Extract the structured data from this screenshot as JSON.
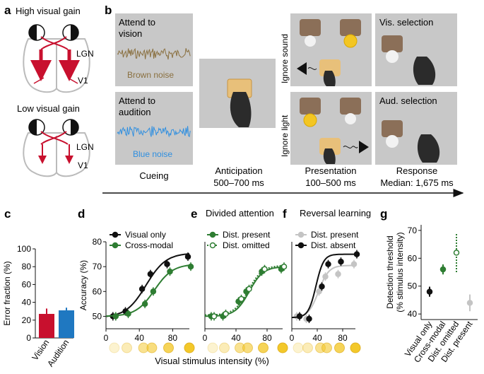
{
  "panels": {
    "a": "a",
    "b": "b",
    "c": "c",
    "d": "d",
    "e": "e",
    "f": "f",
    "g": "g"
  },
  "panel_a": {
    "high_title": "High visual gain",
    "low_title": "Low visual gain",
    "lgn": "LGN",
    "v1": "V1"
  },
  "panel_b": {
    "attend_vision": [
      "Attend to",
      "vision"
    ],
    "brown_noise": "Brown noise",
    "attend_audition": [
      "Attend to",
      "audition"
    ],
    "blue_noise": "Blue noise",
    "ignore_sound": "Ignore sound",
    "ignore_light": "Ignore light",
    "vis_selection": "Vis. selection",
    "aud_selection": "Aud. selection",
    "stage_cueing": "Cueing",
    "stage_anticipation": [
      "Anticipation",
      "500–700 ms"
    ],
    "stage_presentation": [
      "Presentation",
      "100–500 ms"
    ],
    "stage_response": [
      "Response",
      "Median: 1,675 ms"
    ],
    "colors": {
      "brown": "#8a7040",
      "blue": "#2f8fe0",
      "panel_grey": "#c8c8c8",
      "light": "#f3c623"
    }
  },
  "shared": {
    "xlabel_def": "Visual stimulus intensity (%)",
    "headers": {
      "e": "Divided attention",
      "f": "Reversal learning"
    }
  },
  "chart_data": [
    {
      "panel": "c",
      "type": "bar",
      "ylabel": "Error fraction (%)",
      "categories": [
        "Vision",
        "Audition"
      ],
      "values": [
        27,
        31
      ],
      "errors": [
        6,
        3
      ],
      "colors": [
        "#c8102e",
        "#1f78c1"
      ],
      "ylim": [
        0,
        100
      ],
      "yticks": [
        "0",
        "20",
        "40",
        "60",
        "80",
        "100"
      ]
    },
    {
      "panel": "d",
      "type": "line",
      "ylabel": "Accuracy (%)",
      "xlim": [
        0,
        100
      ],
      "ylim": [
        45,
        80
      ],
      "xticks": [
        "0",
        "40",
        "80"
      ],
      "yticks": [
        "50",
        "60",
        "70",
        "80"
      ],
      "x": [
        10,
        25,
        45,
        55,
        75,
        100
      ],
      "series": [
        {
          "name": "Visual only",
          "color": "#111111",
          "style": "solid",
          "marker": "filled",
          "values": [
            50,
            52,
            61,
            67,
            71,
            74
          ],
          "curve": [
            49.5,
            75.5,
            48,
            12
          ]
        },
        {
          "name": "Cross-modal",
          "color": "#2e7d32",
          "style": "solid",
          "marker": "filled",
          "values": [
            50,
            51,
            55,
            60,
            68,
            70
          ],
          "curve": [
            50,
            71,
            58,
            11
          ]
        }
      ]
    },
    {
      "panel": "e",
      "type": "line",
      "xlim": [
        0,
        100
      ],
      "ylim": [
        45,
        80
      ],
      "xticks": [
        "0",
        "40",
        "80"
      ],
      "x": [
        10,
        25,
        45,
        55,
        75,
        100
      ],
      "series": [
        {
          "name": "Dist. present",
          "color": "#2e7d32",
          "style": "solid",
          "marker": "filled",
          "values": [
            50,
            50,
            56,
            60,
            68,
            69
          ],
          "curve": [
            50,
            70,
            57,
            9
          ]
        },
        {
          "name": "Dist. omitted",
          "color": "#2e7d32",
          "style": "dotted",
          "marker": "open",
          "values": [
            50,
            51,
            57,
            61,
            69,
            70
          ],
          "curve": [
            50.5,
            70.5,
            56,
            9
          ]
        }
      ]
    },
    {
      "panel": "f",
      "type": "line",
      "xlim": [
        0,
        100
      ],
      "ylim": [
        45,
        80
      ],
      "xticks": [
        "0",
        "40",
        "80"
      ],
      "x": [
        10,
        25,
        45,
        55,
        75,
        100
      ],
      "series": [
        {
          "name": "Dist. present",
          "color": "#c4c4c4",
          "style": "solid",
          "marker": "filled",
          "values": [
            50,
            49,
            60,
            66,
            67,
            71
          ],
          "curve": [
            49.5,
            70.5,
            42,
            8
          ]
        },
        {
          "name": "Dist. absent",
          "color": "#111111",
          "style": "solid",
          "marker": "filled",
          "values": [
            50,
            49,
            62,
            71,
            72,
            75
          ],
          "curve": [
            49.5,
            75,
            38,
            6
          ]
        }
      ]
    },
    {
      "panel": "g",
      "type": "scatter",
      "ylabel": [
        "Detection threshold",
        "(% stimulus intensity)"
      ],
      "ylim": [
        38,
        72
      ],
      "yticks": [
        "40",
        "50",
        "60",
        "70"
      ],
      "categories": [
        "Visual only",
        "Cross-modal",
        "Dist. omitted",
        "Dist. present"
      ],
      "values": [
        48,
        56,
        62,
        44
      ],
      "errors": [
        1.8,
        1.8,
        7,
        3
      ],
      "colors": [
        "#111111",
        "#2e7d32",
        "#2e7d32",
        "#c4c4c4"
      ],
      "markers": [
        "filled",
        "filled",
        "open",
        "filled"
      ]
    }
  ]
}
